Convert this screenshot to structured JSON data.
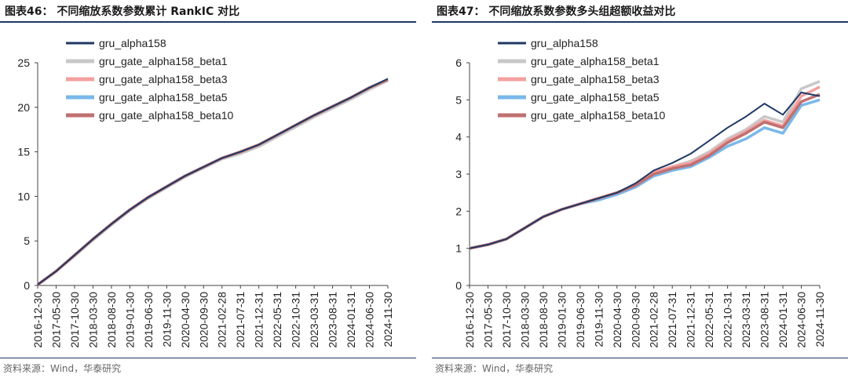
{
  "source_label": "资料来源：Wind，华泰研究",
  "chart_data": [
    {
      "type": "line",
      "title": "图表46：  不同缩放系数参数累计 RankIC 对比",
      "x": [
        "2016-12-30",
        "2017-05-30",
        "2017-10-30",
        "2018-03-30",
        "2018-08-30",
        "2019-01-30",
        "2019-06-30",
        "2019-11-30",
        "2020-04-30",
        "2020-09-30",
        "2021-02-28",
        "2021-07-31",
        "2021-12-31",
        "2022-05-31",
        "2022-10-31",
        "2023-03-31",
        "2023-08-31",
        "2024-01-31",
        "2024-06-30",
        "2024-11-30"
      ],
      "ylim": [
        0,
        25
      ],
      "yticks": [
        0,
        5,
        10,
        15,
        20,
        25
      ],
      "legend_position": "top-left",
      "series": [
        {
          "name": "gru_alpha158",
          "color": "#1f3864",
          "values": [
            0.1,
            1.6,
            3.4,
            5.2,
            6.9,
            8.5,
            9.9,
            11.1,
            12.3,
            13.3,
            14.3,
            15.0,
            15.8,
            16.9,
            18.0,
            19.1,
            20.1,
            21.1,
            22.2,
            23.2
          ]
        },
        {
          "name": "gru_gate_alpha158_beta1",
          "color": "#c8c8c8",
          "values": [
            0.1,
            1.6,
            3.3,
            5.1,
            6.8,
            8.4,
            9.8,
            11.0,
            12.2,
            13.2,
            14.2,
            14.8,
            15.6,
            16.7,
            17.8,
            18.9,
            19.9,
            20.9,
            22.0,
            23.0
          ]
        },
        {
          "name": "gru_gate_alpha158_beta3",
          "color": "#f4a0a0",
          "values": [
            0.1,
            1.6,
            3.4,
            5.2,
            6.9,
            8.5,
            9.9,
            11.1,
            12.3,
            13.3,
            14.3,
            15.0,
            15.8,
            16.9,
            18.0,
            19.1,
            20.1,
            21.1,
            22.2,
            23.1
          ]
        },
        {
          "name": "gru_gate_alpha158_beta5",
          "color": "#7ab8ea",
          "values": [
            0.1,
            1.6,
            3.4,
            5.2,
            6.9,
            8.5,
            9.9,
            11.1,
            12.3,
            13.3,
            14.3,
            15.0,
            15.8,
            16.9,
            18.0,
            19.1,
            20.1,
            21.1,
            22.2,
            23.1
          ]
        },
        {
          "name": "gru_gate_alpha158_beta10",
          "color": "#c07070",
          "values": [
            0.1,
            1.6,
            3.4,
            5.2,
            6.9,
            8.5,
            9.9,
            11.1,
            12.3,
            13.3,
            14.3,
            15.0,
            15.8,
            16.9,
            18.0,
            19.1,
            20.1,
            21.1,
            22.2,
            23.1
          ]
        }
      ]
    },
    {
      "type": "line",
      "title": "图表47：  不同缩放系数参数多头组超额收益对比",
      "x": [
        "2016-12-30",
        "2017-05-30",
        "2017-10-30",
        "2018-03-30",
        "2018-08-30",
        "2019-01-30",
        "2019-06-30",
        "2019-11-30",
        "2020-04-30",
        "2020-09-30",
        "2021-02-28",
        "2021-07-31",
        "2021-12-31",
        "2022-05-31",
        "2022-10-31",
        "2023-03-31",
        "2023-08-31",
        "2024-01-31",
        "2024-06-30",
        "2024-11-30"
      ],
      "ylim": [
        0,
        6
      ],
      "yticks": [
        0,
        1,
        2,
        3,
        4,
        5,
        6
      ],
      "legend_position": "top-left",
      "series": [
        {
          "name": "gru_alpha158",
          "color": "#1f3864",
          "values": [
            1.0,
            1.1,
            1.25,
            1.55,
            1.85,
            2.05,
            2.2,
            2.35,
            2.5,
            2.75,
            3.1,
            3.3,
            3.55,
            3.9,
            4.25,
            4.55,
            4.9,
            4.6,
            5.2,
            5.1
          ]
        },
        {
          "name": "gru_gate_alpha158_beta1",
          "color": "#c8c8c8",
          "values": [
            1.0,
            1.1,
            1.25,
            1.55,
            1.85,
            2.05,
            2.2,
            2.35,
            2.5,
            2.7,
            3.05,
            3.2,
            3.35,
            3.6,
            3.95,
            4.2,
            4.55,
            4.4,
            5.3,
            5.5
          ]
        },
        {
          "name": "gru_gate_alpha158_beta3",
          "color": "#f4a0a0",
          "values": [
            1.0,
            1.1,
            1.25,
            1.55,
            1.85,
            2.05,
            2.2,
            2.35,
            2.5,
            2.7,
            3.05,
            3.2,
            3.3,
            3.55,
            3.9,
            4.15,
            4.45,
            4.3,
            5.1,
            5.35
          ]
        },
        {
          "name": "gru_gate_alpha158_beta5",
          "color": "#7ab8ea",
          "values": [
            1.0,
            1.1,
            1.25,
            1.55,
            1.85,
            2.05,
            2.2,
            2.3,
            2.45,
            2.65,
            2.95,
            3.1,
            3.2,
            3.45,
            3.75,
            3.95,
            4.25,
            4.1,
            4.85,
            5.0
          ]
        },
        {
          "name": "gru_gate_alpha158_beta10",
          "color": "#c07070",
          "values": [
            1.0,
            1.1,
            1.25,
            1.55,
            1.85,
            2.05,
            2.2,
            2.35,
            2.5,
            2.7,
            3.0,
            3.15,
            3.25,
            3.5,
            3.85,
            4.1,
            4.4,
            4.25,
            4.95,
            5.15
          ]
        }
      ]
    }
  ]
}
